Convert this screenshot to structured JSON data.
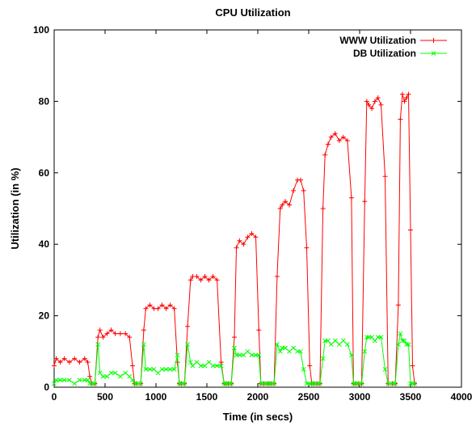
{
  "chart_data": {
    "type": "line",
    "title": "CPU Utilization",
    "xlabel": "Time (in secs)",
    "ylabel": "Utilization (in %)",
    "xlim": [
      0,
      4000
    ],
    "ylim": [
      0,
      100
    ],
    "xticks": [
      0,
      500,
      1000,
      1500,
      2000,
      2500,
      3000,
      3500,
      4000
    ],
    "yticks": [
      0,
      20,
      40,
      60,
      80,
      100
    ],
    "grid": false,
    "legend_position": "top-right",
    "series": [
      {
        "name": "WWW Utilization",
        "color": "#ff0000",
        "marker": "plus",
        "x": [
          0,
          20,
          60,
          100,
          150,
          200,
          250,
          300,
          330,
          350,
          370,
          400,
          430,
          450,
          480,
          520,
          560,
          600,
          650,
          700,
          740,
          770,
          790,
          810,
          850,
          880,
          900,
          940,
          980,
          1020,
          1060,
          1100,
          1140,
          1180,
          1210,
          1230,
          1250,
          1280,
          1310,
          1340,
          1360,
          1400,
          1440,
          1480,
          1520,
          1560,
          1600,
          1640,
          1670,
          1690,
          1710,
          1740,
          1770,
          1790,
          1820,
          1860,
          1900,
          1940,
          1980,
          2010,
          2030,
          2060,
          2090,
          2110,
          2130,
          2160,
          2190,
          2220,
          2240,
          2270,
          2310,
          2350,
          2390,
          2420,
          2450,
          2480,
          2510,
          2530,
          2550,
          2580,
          2610,
          2640,
          2660,
          2690,
          2720,
          2760,
          2800,
          2840,
          2880,
          2920,
          2940,
          2960,
          2990,
          3020,
          3050,
          3070,
          3090,
          3120,
          3150,
          3180,
          3210,
          3250,
          3280,
          3320,
          3350,
          3380,
          3400,
          3420,
          3440,
          3460,
          3480,
          3500,
          3520,
          3540
        ],
        "y": [
          6,
          8,
          7,
          8,
          7,
          8,
          7,
          8,
          7,
          3,
          1,
          1,
          14,
          16,
          14,
          15,
          16,
          15,
          15,
          15,
          14,
          6,
          1,
          1,
          1,
          16,
          22,
          23,
          22,
          22,
          23,
          22,
          23,
          22,
          7,
          1,
          1,
          1,
          17,
          30,
          31,
          31,
          30,
          31,
          30,
          31,
          30,
          7,
          1,
          1,
          1,
          1,
          14,
          39,
          41,
          40,
          42,
          43,
          42,
          16,
          1,
          1,
          1,
          1,
          1,
          1,
          31,
          50,
          51,
          52,
          51,
          55,
          58,
          58,
          55,
          39,
          6,
          1,
          1,
          1,
          1,
          50,
          65,
          68,
          70,
          71,
          69,
          70,
          69,
          53,
          1,
          1,
          1,
          1,
          52,
          80,
          79,
          78,
          80,
          81,
          79,
          59,
          1,
          1,
          1,
          23,
          75,
          82,
          80,
          81,
          82,
          44,
          6,
          1
        ],
        "note": ""
      },
      {
        "name": "DB Utilization",
        "color": "#00ff00",
        "marker": "x",
        "x": [
          0,
          20,
          60,
          100,
          150,
          200,
          250,
          300,
          330,
          350,
          370,
          400,
          430,
          450,
          480,
          520,
          560,
          600,
          650,
          700,
          740,
          770,
          790,
          810,
          850,
          880,
          900,
          940,
          980,
          1020,
          1060,
          1100,
          1140,
          1180,
          1210,
          1230,
          1250,
          1280,
          1310,
          1340,
          1360,
          1400,
          1440,
          1480,
          1520,
          1560,
          1600,
          1640,
          1670,
          1690,
          1710,
          1740,
          1770,
          1790,
          1820,
          1860,
          1900,
          1940,
          1980,
          2010,
          2030,
          2060,
          2090,
          2110,
          2130,
          2160,
          2190,
          2220,
          2240,
          2270,
          2310,
          2350,
          2390,
          2420,
          2450,
          2480,
          2510,
          2530,
          2550,
          2580,
          2610,
          2640,
          2660,
          2690,
          2720,
          2760,
          2800,
          2840,
          2880,
          2920,
          2940,
          2960,
          2990,
          3020,
          3050,
          3070,
          3090,
          3120,
          3150,
          3180,
          3210,
          3250,
          3280,
          3320,
          3350,
          3380,
          3400,
          3420,
          3440,
          3460,
          3480,
          3500,
          3520,
          3540
        ],
        "y": [
          1,
          2,
          2,
          2,
          2,
          1,
          2,
          2,
          2,
          1,
          1,
          1,
          12,
          4,
          3,
          3,
          4,
          4,
          3,
          4,
          3,
          2,
          1,
          1,
          1,
          12,
          5,
          5,
          5,
          4,
          5,
          5,
          5,
          5,
          9,
          1,
          1,
          1,
          12,
          7,
          6,
          7,
          6,
          6,
          7,
          6,
          6,
          6,
          1,
          1,
          1,
          1,
          11,
          9,
          9,
          9,
          10,
          9,
          9,
          9,
          1,
          1,
          1,
          1,
          1,
          1,
          12,
          10,
          11,
          11,
          10,
          11,
          10,
          10,
          5,
          1,
          1,
          1,
          1,
          1,
          1,
          8,
          13,
          13,
          12,
          13,
          12,
          13,
          12,
          9,
          1,
          1,
          1,
          1,
          10,
          14,
          14,
          14,
          13,
          14,
          14,
          5,
          1,
          1,
          1,
          12,
          15,
          13,
          13,
          12,
          12,
          1,
          1,
          1
        ]
      }
    ]
  }
}
